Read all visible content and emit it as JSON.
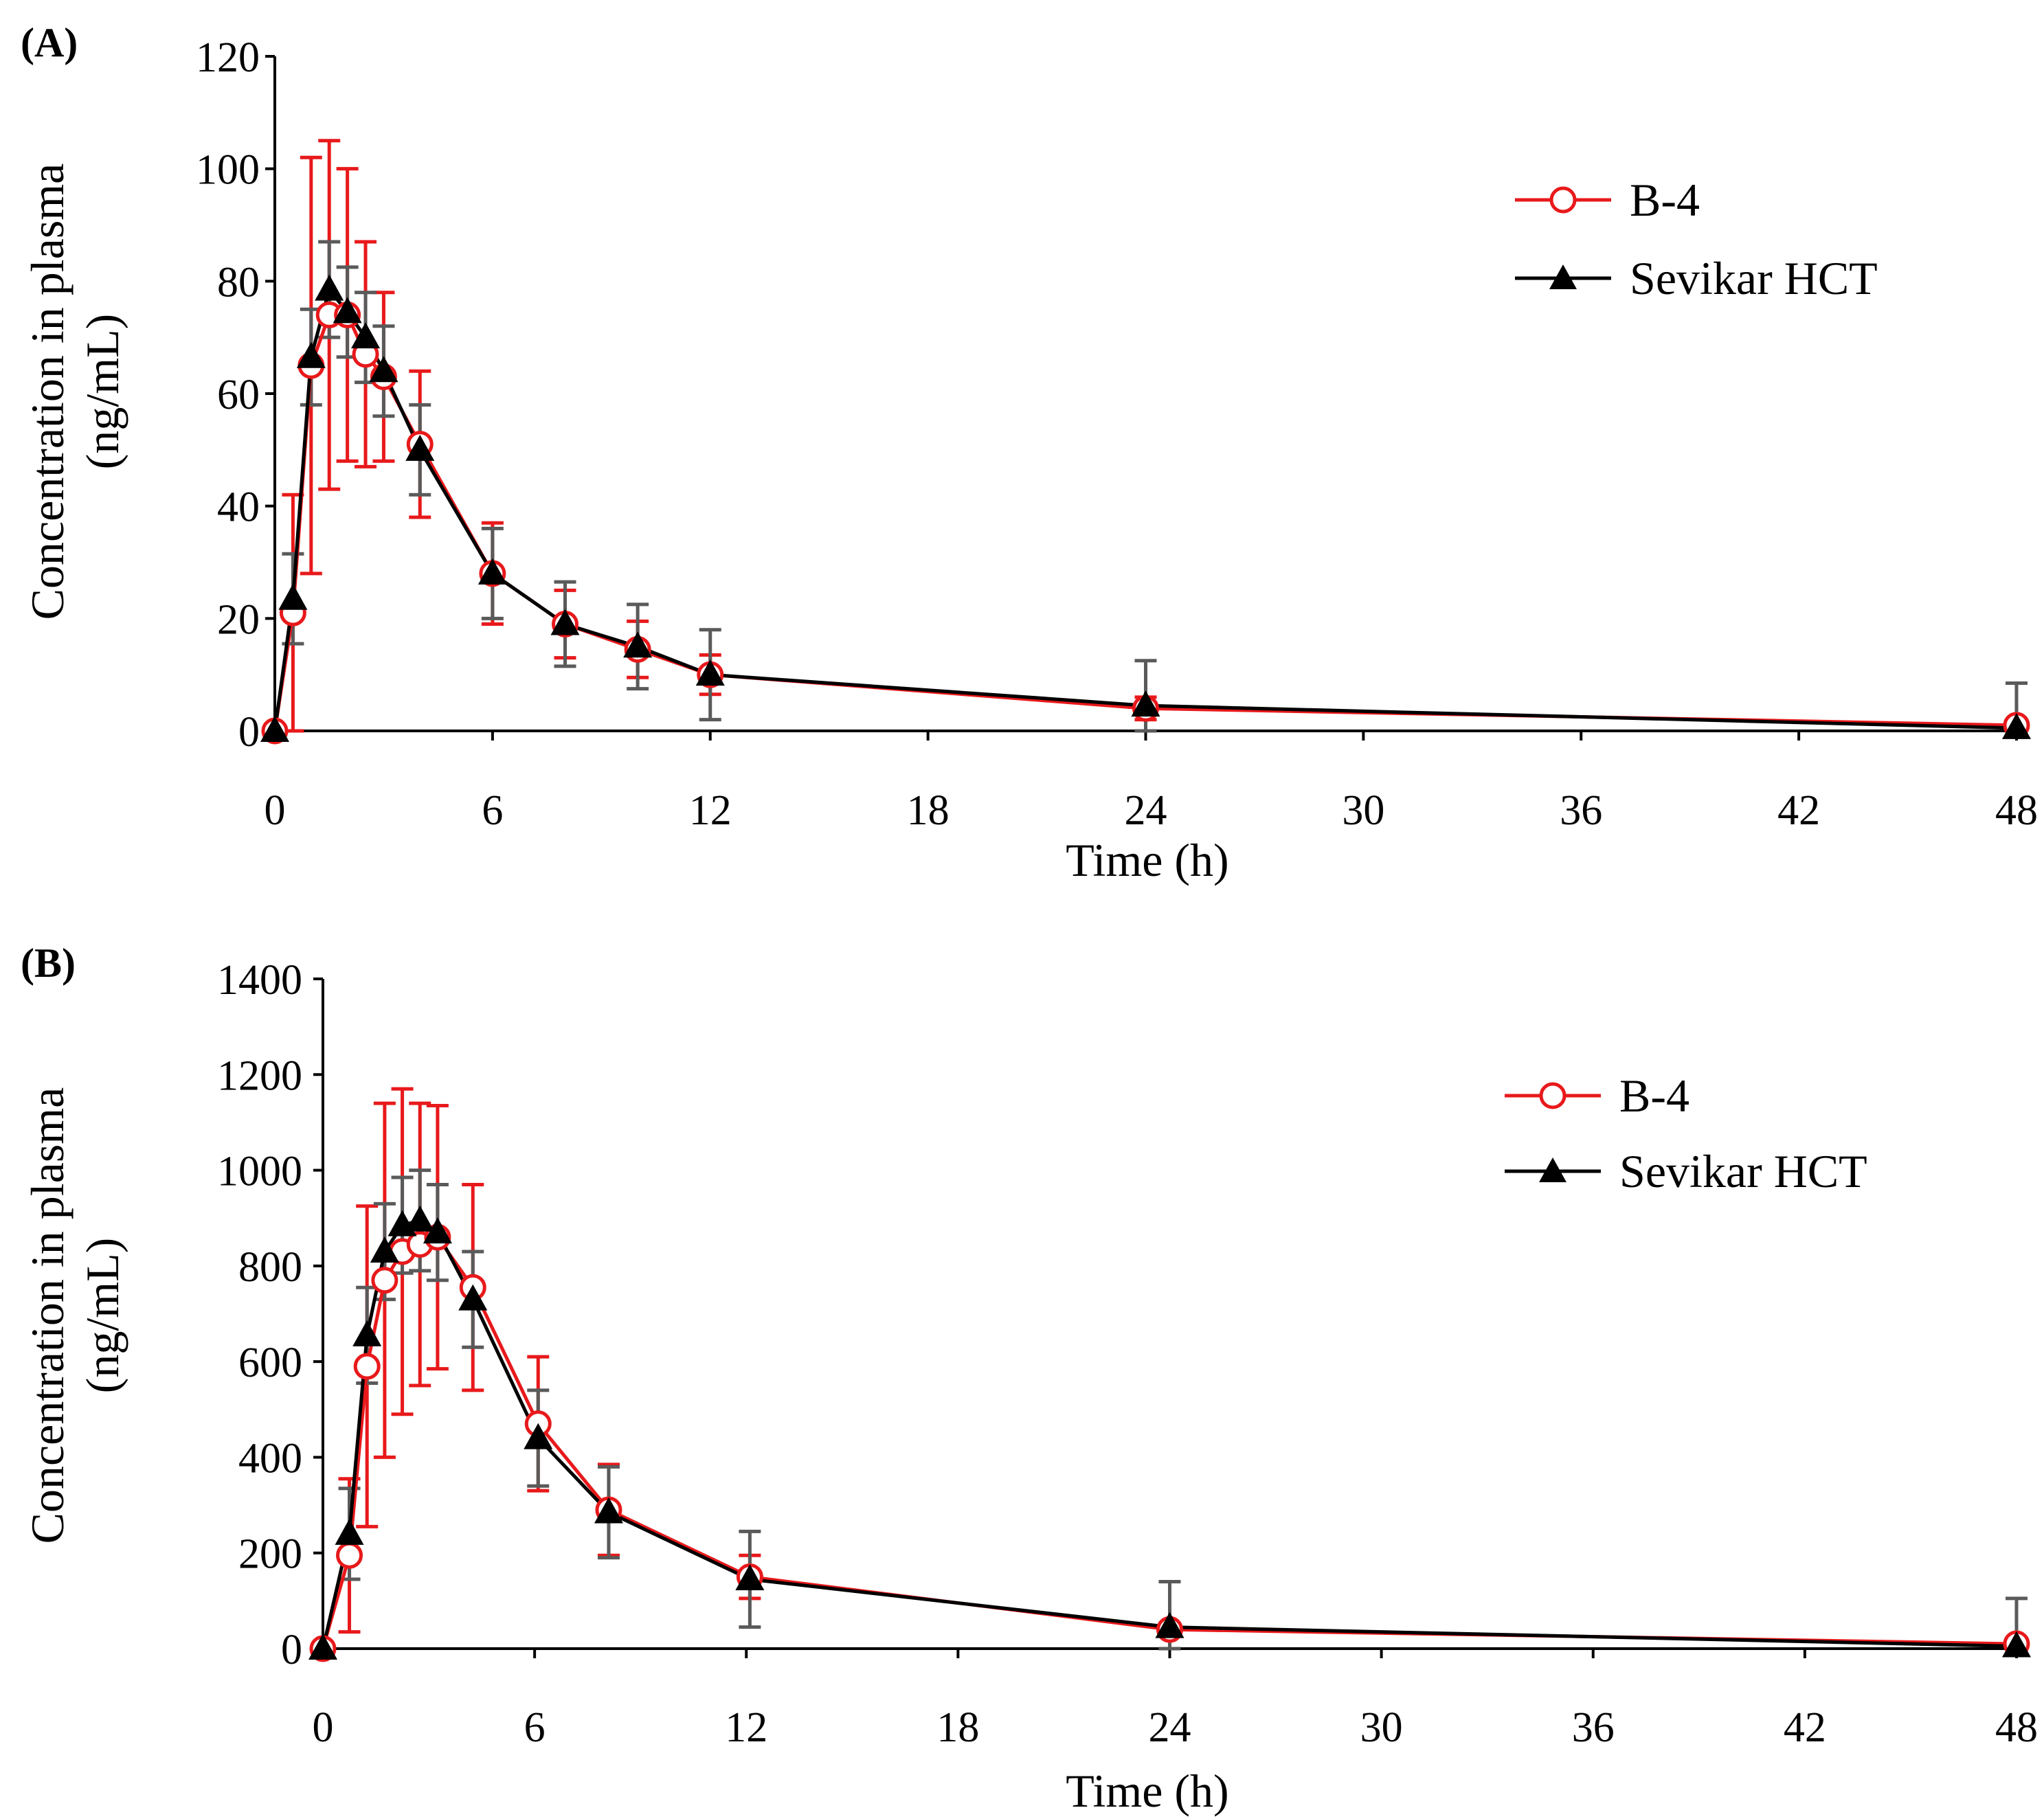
{
  "chart_data": [
    {
      "type": "line",
      "panel_label": "(A)",
      "xlabel": "Time (h)",
      "ylabel_line1": "Concentration in plasma",
      "ylabel_line2": "(ng/mL)",
      "xlim": [
        0,
        48
      ],
      "ylim": [
        0,
        120
      ],
      "xticks": [
        0,
        6,
        12,
        18,
        24,
        30,
        36,
        42,
        48
      ],
      "yticks": [
        0,
        20,
        40,
        60,
        80,
        100,
        120
      ],
      "legend": [
        "B-4",
        "Sevikar HCT"
      ],
      "legend_position": "top-right",
      "series": [
        {
          "name": "B-4",
          "color": "#e8191b",
          "marker": "circle",
          "x": [
            0,
            0.5,
            1,
            1.5,
            2,
            2.5,
            3,
            4,
            6,
            8,
            10,
            12,
            24,
            48
          ],
          "y": [
            0,
            21,
            65,
            74,
            74,
            67,
            63,
            51,
            28,
            19,
            14.5,
            10,
            4,
            1
          ],
          "err": [
            0,
            21,
            37,
            31,
            26,
            20,
            15,
            13,
            9,
            6,
            5,
            3.5,
            2,
            1
          ]
        },
        {
          "name": "Sevikar HCT",
          "color": "#000000",
          "errcolor": "#5a5a5a",
          "marker": "triangle",
          "x": [
            0,
            0.5,
            1,
            1.5,
            2,
            2.5,
            3,
            4,
            6,
            8,
            10,
            12,
            24,
            48
          ],
          "y": [
            0,
            23.5,
            66.5,
            78.5,
            74.5,
            70,
            64,
            50,
            28,
            19,
            15,
            10,
            4.5,
            0.5
          ],
          "err": [
            0,
            8,
            8.5,
            8.5,
            8,
            8,
            8,
            8,
            8,
            7.5,
            7.5,
            8,
            8,
            8
          ]
        }
      ]
    },
    {
      "type": "line",
      "panel_label": "(B)",
      "xlabel": "Time (h)",
      "ylabel_line1": "Concentration in plasma",
      "ylabel_line2": "(ng/mL)",
      "xlim": [
        0,
        48
      ],
      "ylim": [
        0,
        1400
      ],
      "xticks": [
        0,
        6,
        12,
        18,
        24,
        30,
        36,
        42,
        48
      ],
      "yticks": [
        0,
        200,
        400,
        600,
        800,
        1000,
        1200,
        1400
      ],
      "legend": [
        "B-4",
        "Sevikar HCT"
      ],
      "legend_position": "top-right",
      "series": [
        {
          "name": "B-4",
          "color": "#e8191b",
          "marker": "circle",
          "x": [
            0,
            0.75,
            1.25,
            1.75,
            2.25,
            2.75,
            3.25,
            4.25,
            6.1,
            8.1,
            12.1,
            24,
            48
          ],
          "y": [
            0,
            195,
            590,
            770,
            830,
            845,
            860,
            755,
            470,
            290,
            150,
            40,
            10
          ],
          "err": [
            0,
            160,
            335,
            370,
            340,
            295,
            275,
            215,
            140,
            95,
            45,
            0,
            0
          ]
        },
        {
          "name": "Sevikar HCT",
          "color": "#000000",
          "errcolor": "#5a5a5a",
          "marker": "triangle",
          "x": [
            0,
            0.75,
            1.25,
            1.75,
            2.25,
            2.75,
            3.25,
            4.25,
            6.1,
            8.1,
            12.1,
            24,
            48
          ],
          "y": [
            0,
            240,
            655,
            830,
            885,
            895,
            870,
            730,
            440,
            285,
            145,
            45,
            5
          ],
          "err": [
            0,
            95,
            100,
            100,
            100,
            105,
            100,
            100,
            100,
            95,
            100,
            95,
            100
          ]
        }
      ]
    }
  ]
}
